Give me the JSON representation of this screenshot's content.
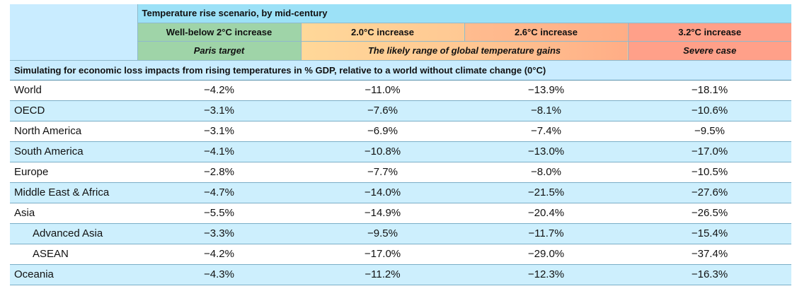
{
  "header": {
    "title": "Temperature rise scenario, by mid-century",
    "scenarios": [
      {
        "label": "Well-below 2°C increase"
      },
      {
        "label": "2.0°C increase"
      },
      {
        "label": "2.6°C increase"
      },
      {
        "label": "3.2°C increase"
      }
    ],
    "descriptions": {
      "paris": "Paris target",
      "likely": "The likely range of global temperature gains",
      "severe": "Severe case"
    }
  },
  "subheader": "Simulating for economic loss impacts from rising temperatures in % GDP, relative to a world without climate change (0°C)",
  "rows": [
    {
      "region": "World",
      "values": [
        "−4.2%",
        "−11.0%",
        "−13.9%",
        "−18.1%"
      ]
    },
    {
      "region": "OECD",
      "values": [
        "−3.1%",
        "−7.6%",
        "−8.1%",
        "−10.6%"
      ]
    },
    {
      "region": "North America",
      "values": [
        "−3.1%",
        "−6.9%",
        "−7.4%",
        "−9.5%"
      ]
    },
    {
      "region": "South America",
      "values": [
        "−4.1%",
        "−10.8%",
        "−13.0%",
        "−17.0%"
      ]
    },
    {
      "region": "Europe",
      "values": [
        "−2.8%",
        "−7.7%",
        "−8.0%",
        "−10.5%"
      ]
    },
    {
      "region": "Middle East & Africa",
      "values": [
        "−4.7%",
        "−14.0%",
        "−21.5%",
        "−27.6%"
      ]
    },
    {
      "region": "Asia",
      "values": [
        "−5.5%",
        "−14.9%",
        "−20.4%",
        "−26.5%"
      ]
    },
    {
      "region": "Advanced Asia",
      "values": [
        "−3.3%",
        "−9.5%",
        "−11.7%",
        "−15.4%"
      ]
    },
    {
      "region": "ASEAN",
      "values": [
        "−4.2%",
        "−17.0%",
        "−29.0%",
        "−37.4%"
      ]
    },
    {
      "region": "Oceania",
      "values": [
        "−4.3%",
        "−11.2%",
        "−12.3%",
        "−16.3%"
      ]
    }
  ]
}
